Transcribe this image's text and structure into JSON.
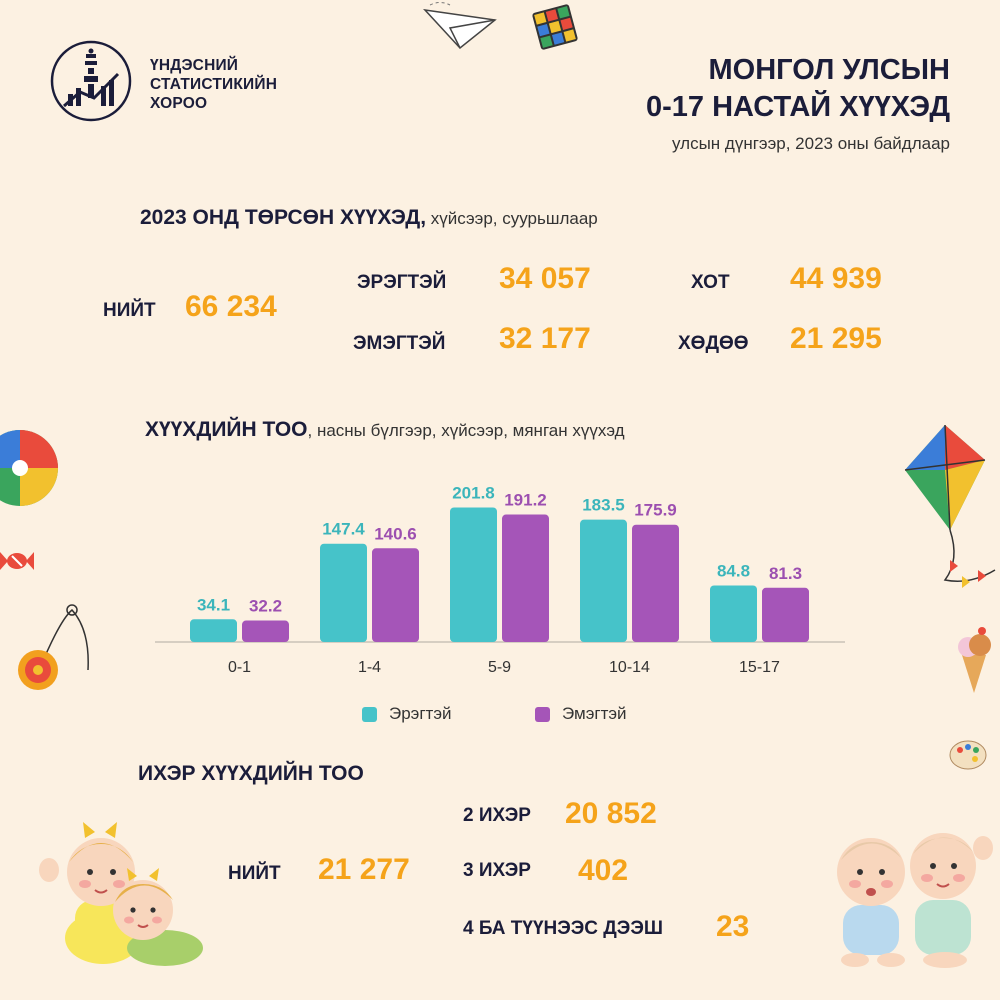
{
  "org": {
    "line1": "ҮНДЭСНИЙ",
    "line2": "СТАТИСТИКИЙН",
    "line3": "ХОРОО"
  },
  "header": {
    "title_line1": "МОНГОЛ УЛСЫН",
    "title_line2": "0-17 НАСТАЙ ХҮҮХЭД",
    "subtitle": "улсын дүнгээр, 2023 оны байдлаар"
  },
  "births": {
    "title": "2023 ОНД ТӨРСӨН ХҮҮХЭД,",
    "note": " хүйсээр, суурьшлаар",
    "total_label": "НИЙТ",
    "total_value": "66 234",
    "male_label": "ЭРЭГТЭЙ",
    "male_value": "34 057",
    "female_label": "ЭМЭГТЭЙ",
    "female_value": "32 177",
    "urban_label": "ХОТ",
    "urban_value": "44 939",
    "rural_label": "ХӨДӨӨ",
    "rural_value": "21 295"
  },
  "chart_title": {
    "title": "ХҮҮХДИЙН ТОО",
    "note": ", насны бүлгээр, хүйсээр, мянган хүүхэд"
  },
  "chart_data": {
    "type": "bar",
    "title": "ХҮҮХДИЙН ТОО, насны бүлгээр, хүйсээр, мянган хүүхэд",
    "categories": [
      "0-1",
      "1-4",
      "5-9",
      "10-14",
      "15-17"
    ],
    "series": [
      {
        "name": "Эрэгтэй",
        "values": [
          34.1,
          147.4,
          201.8,
          183.5,
          84.8
        ],
        "color": "#46c3c9",
        "label_color": "#3bb5bb"
      },
      {
        "name": "Эмэгтэй",
        "values": [
          32.2,
          140.6,
          191.2,
          175.9,
          81.3
        ],
        "color": "#a555b8",
        "label_color": "#9c4fb0"
      }
    ],
    "ylim": [
      0,
      210
    ],
    "grid": false,
    "legend": "bottom"
  },
  "multiples": {
    "title": "ИХЭР ХҮҮХДИЙН ТОО",
    "total_label": "НИЙТ",
    "total_value": "21 277",
    "twins_label": "2 ИХЭР",
    "twins_value": "20 852",
    "triplets_label": "3 ИХЭР",
    "triplets_value": "402",
    "more_label": "4 БА ТҮҮНЭЭС ДЭЭШ",
    "more_value": "23"
  },
  "decorations": [
    "paper-plane-icon",
    "rubiks-cube-icon",
    "beach-ball-icon",
    "candy-icon",
    "yoyo-icon",
    "kite-icon",
    "ice-cream-icon",
    "paint-palette-icon",
    "babies-left-illustration",
    "babies-right-illustration"
  ]
}
